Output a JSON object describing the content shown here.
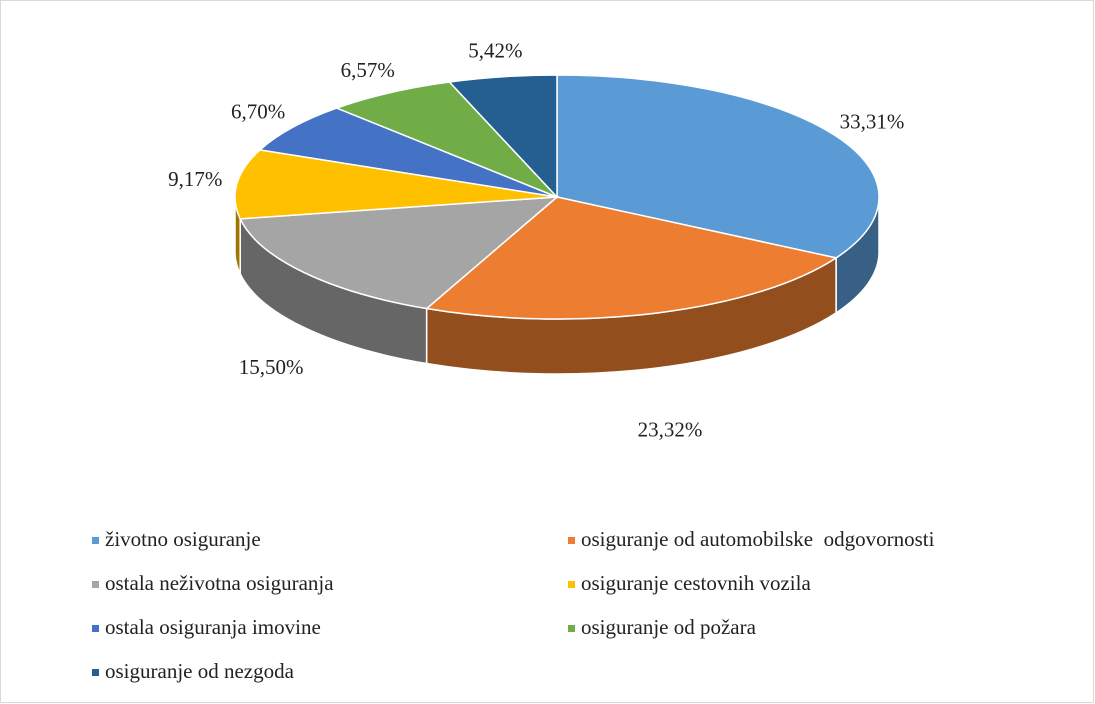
{
  "chart_data": {
    "type": "pie3d",
    "categories": [
      "životno osiguranje",
      "osiguranje od automobilske  odgovornosti",
      "ostala neživotna osiguranja",
      "osiguranje cestovnih vozila",
      "ostala osiguranja imovine",
      "osiguranje od požara",
      "osiguranje od nezgoda"
    ],
    "values": [
      33.31,
      23.32,
      15.5,
      9.17,
      6.7,
      6.57,
      5.42
    ],
    "value_labels": [
      "33,31%",
      "23,32%",
      "15,50%",
      "9,17%",
      "6,70%",
      "6,57%",
      "5,42%"
    ],
    "colors": [
      "#5b9bd5",
      "#ed7d31",
      "#a5a5a5",
      "#ffc000",
      "#4472c4",
      "#70ad47",
      "#255e91"
    ],
    "legend": "bottom"
  }
}
